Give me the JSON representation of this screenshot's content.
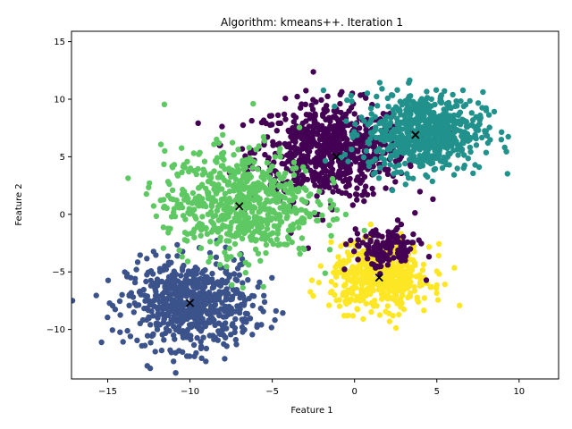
{
  "chart_data": {
    "type": "scatter",
    "title": "Algorithm: kmeans++. Iteration 1",
    "xlabel": "Feature 1",
    "ylabel": "Feature 2",
    "xlim": [
      -17.2,
      12.4
    ],
    "ylim": [
      -14.3,
      15.9
    ],
    "xticks": [
      -15,
      -10,
      -5,
      0,
      5,
      10
    ],
    "yticks": [
      -10,
      -5,
      0,
      5,
      10,
      15
    ],
    "grid": false,
    "legend": "none",
    "series": [
      {
        "color": "#440154",
        "center": [
          -1.5,
          5.5
        ],
        "spread": [
          2.3,
          2.1
        ],
        "count": 700
      },
      {
        "color": "#3b528b",
        "center": [
          -10.0,
          -7.8
        ],
        "spread": [
          1.9,
          1.9
        ],
        "count": 650
      },
      {
        "color": "#21918c",
        "center": [
          4.2,
          7.2
        ],
        "spread": [
          1.8,
          1.7
        ],
        "count": 650
      },
      {
        "color": "#5ec962",
        "center": [
          -7.0,
          1.0
        ],
        "spread": [
          2.3,
          2.4
        ],
        "count": 650
      },
      {
        "color": "#fde725",
        "center": [
          1.6,
          -5.5
        ],
        "spread": [
          1.5,
          1.4
        ],
        "count": 500
      },
      {
        "color": "#440154",
        "center": [
          1.8,
          -3.0
        ],
        "spread": [
          1.0,
          0.9
        ],
        "count": 140
      }
    ],
    "centroids": [
      {
        "x": -1.1,
        "y": 5.0
      },
      {
        "x": 3.7,
        "y": 6.9
      },
      {
        "x": -7.0,
        "y": 0.7
      },
      {
        "x": -10.0,
        "y": -7.7
      },
      {
        "x": 1.5,
        "y": -5.5
      }
    ],
    "centroid_marker": "x",
    "centroid_color": "#000000"
  }
}
